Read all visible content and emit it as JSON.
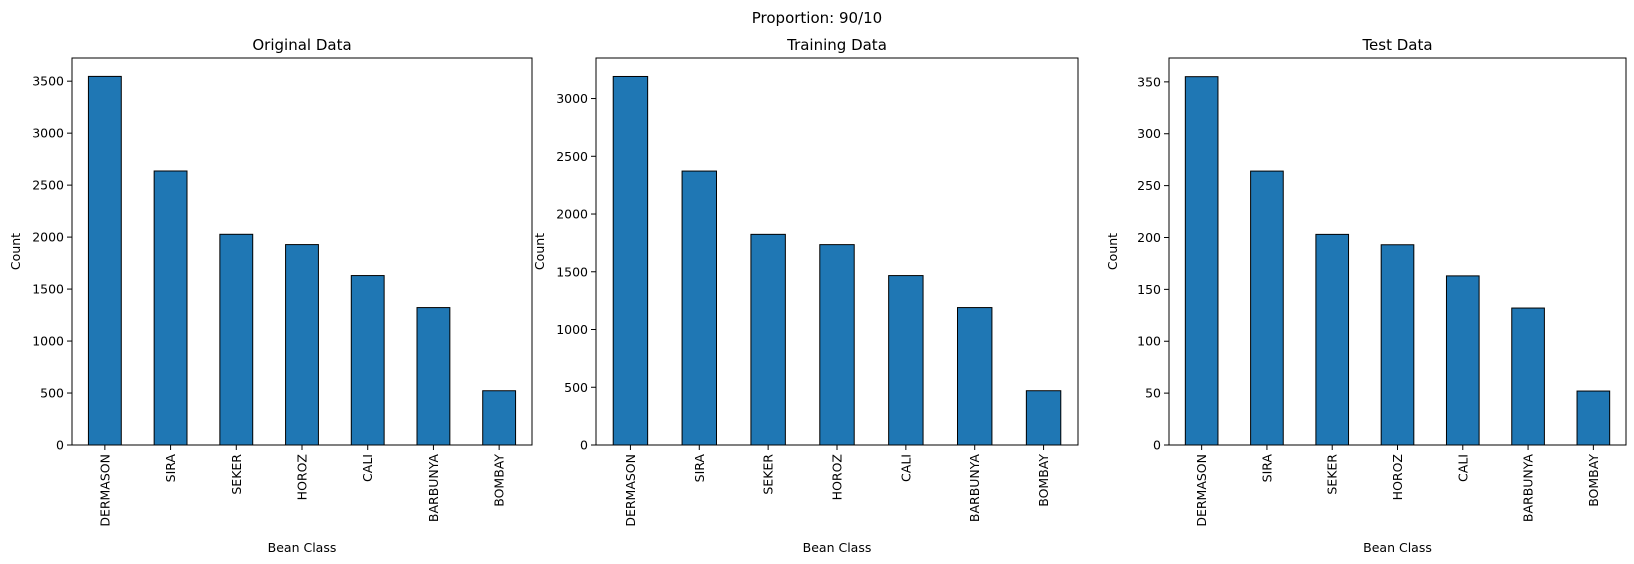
{
  "figure": {
    "suptitle": "Proportion: 90/10",
    "bar_color": "#1f77b4",
    "edge_color": "#000000"
  },
  "chart_data": [
    {
      "type": "bar",
      "title": "Original Data",
      "xlabel": "Bean Class",
      "ylabel": "Count",
      "categories": [
        "DERMASON",
        "SIRA",
        "SEKER",
        "HOROZ",
        "CALI",
        "BARBUNYA",
        "BOMBAY"
      ],
      "values": [
        3546,
        2636,
        2027,
        1928,
        1630,
        1322,
        522
      ],
      "ylim": [
        0,
        3723
      ],
      "yticks": [
        0,
        500,
        1000,
        1500,
        2000,
        2500,
        3000,
        3500
      ],
      "grid": false
    },
    {
      "type": "bar",
      "title": "Training Data",
      "xlabel": "Bean Class",
      "ylabel": "Count",
      "categories": [
        "DERMASON",
        "SIRA",
        "SEKER",
        "HOROZ",
        "CALI",
        "BARBUNYA",
        "BOMBAY"
      ],
      "values": [
        3191,
        2372,
        1824,
        1735,
        1467,
        1190,
        470
      ],
      "ylim": [
        0,
        3351
      ],
      "yticks": [
        0,
        500,
        1000,
        1500,
        2000,
        2500,
        3000
      ],
      "grid": false
    },
    {
      "type": "bar",
      "title": "Test Data",
      "xlabel": "Bean Class",
      "ylabel": "Count",
      "categories": [
        "DERMASON",
        "SIRA",
        "SEKER",
        "HOROZ",
        "CALI",
        "BARBUNYA",
        "BOMBAY"
      ],
      "values": [
        355,
        264,
        203,
        193,
        163,
        132,
        52
      ],
      "ylim": [
        0,
        373
      ],
      "yticks": [
        0,
        50,
        100,
        150,
        200,
        250,
        300,
        350
      ],
      "grid": false
    }
  ]
}
